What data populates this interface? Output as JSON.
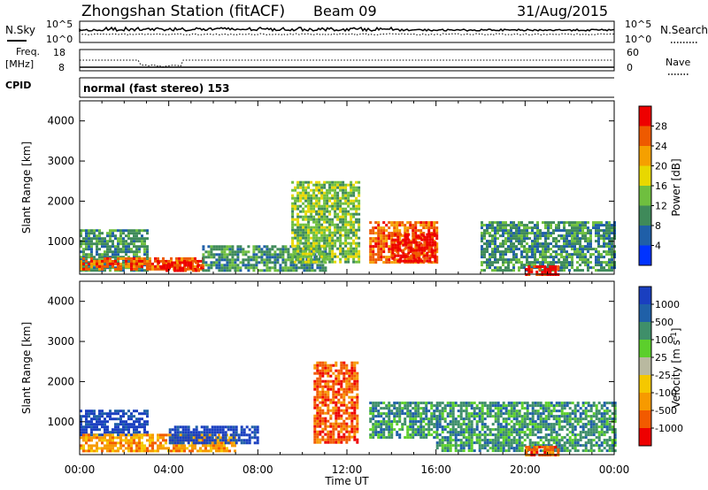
{
  "header": {
    "station": "Zhongshan Station (fitACF)",
    "beam": "Beam 09",
    "date": "31/Aug/2015"
  },
  "top_panels": {
    "nsky_label": "N.Sky",
    "nsearch_label": "N.Search",
    "noise_ticks": [
      "10^5",
      "10^0"
    ],
    "freq_label": "Freq.",
    "freq_unit": "[MHz]",
    "freq_ticks": [
      "18",
      "8"
    ],
    "nave_label": "Nave",
    "nave_ticks": [
      "60",
      "0"
    ],
    "cpid_label": "CPID",
    "cpid_text": "normal (fast stereo) 153"
  },
  "colors": {
    "power": [
      "#0033ff",
      "#1f5fa8",
      "#3f8a5a",
      "#6fbf3f",
      "#e8d800",
      "#f5a000",
      "#ee5a00",
      "#ee0000"
    ],
    "velocity": [
      "#ee0000",
      "#f25a00",
      "#f79a00",
      "#f5c800",
      "#b9b9a0",
      "#5ccf2c",
      "#3f8f6a",
      "#1f60a8",
      "#1a3fc0"
    ]
  },
  "chart_data": [
    {
      "type": "heatmap",
      "title": "Power",
      "xlabel": "",
      "ylabel": "Slant Range [km]",
      "xlim": [
        "00:00",
        "24:00"
      ],
      "ylim": [
        180,
        4500
      ],
      "x_ticks": [
        "00:00",
        "04:00",
        "08:00",
        "12:00",
        "16:00",
        "20:00",
        "00:00"
      ],
      "y_ticks": [
        1000,
        2000,
        3000,
        4000
      ],
      "colorbar": {
        "label": "Power [dB]",
        "ticks": [
          4,
          8,
          12,
          16,
          20,
          24,
          28
        ],
        "range": [
          0,
          32
        ]
      },
      "regions": [
        {
          "t": [
            0.0,
            3.0
          ],
          "range": [
            300,
            1300
          ],
          "level": 2
        },
        {
          "t": [
            0.0,
            5.5
          ],
          "range": [
            300,
            600
          ],
          "level": 6
        },
        {
          "t": [
            3.5,
            5.5
          ],
          "range": [
            300,
            500
          ],
          "level": 7
        },
        {
          "t": [
            5.5,
            11.0
          ],
          "range": [
            300,
            900
          ],
          "level": 2
        },
        {
          "t": [
            9.5,
            12.5
          ],
          "range": [
            500,
            2500
          ],
          "level": 3
        },
        {
          "t": [
            13.0,
            16.0
          ],
          "range": [
            500,
            1500
          ],
          "level": 6
        },
        {
          "t": [
            14.0,
            16.0
          ],
          "range": [
            500,
            1200
          ],
          "level": 7
        },
        {
          "t": [
            18.0,
            24.0
          ],
          "range": [
            300,
            1500
          ],
          "level": 2
        },
        {
          "t": [
            20.0,
            21.5
          ],
          "range": [
            200,
            400
          ],
          "level": 7
        }
      ]
    },
    {
      "type": "heatmap",
      "title": "Velocity",
      "xlabel": "Time UT",
      "ylabel": "Slant Range [km]",
      "xlim": [
        "00:00",
        "24:00"
      ],
      "ylim": [
        180,
        4500
      ],
      "x_ticks": [
        "00:00",
        "04:00",
        "08:00",
        "12:00",
        "16:00",
        "20:00",
        "00:00"
      ],
      "y_ticks": [
        1000,
        2000,
        3000,
        4000
      ],
      "colorbar": {
        "label": "Velocity [m s^-1]",
        "ticks": [
          "1000",
          "500",
          "100",
          "25",
          "-25",
          "-100",
          "-500",
          "-1000"
        ]
      },
      "regions": [
        {
          "t": [
            0.0,
            3.0
          ],
          "range": [
            700,
            1300
          ],
          "level": 8
        },
        {
          "t": [
            0.0,
            7.0
          ],
          "range": [
            300,
            700
          ],
          "level": 2
        },
        {
          "t": [
            4.0,
            8.0
          ],
          "range": [
            500,
            900
          ],
          "level": 8
        },
        {
          "t": [
            10.5,
            12.5
          ],
          "range": [
            500,
            2500
          ],
          "level": 1
        },
        {
          "t": [
            13.0,
            16.0
          ],
          "range": [
            600,
            1500
          ],
          "level": 6
        },
        {
          "t": [
            16.0,
            24.0
          ],
          "range": [
            300,
            1500
          ],
          "level": 6
        },
        {
          "t": [
            20.0,
            21.5
          ],
          "range": [
            200,
            400
          ],
          "level": 1
        }
      ]
    }
  ]
}
